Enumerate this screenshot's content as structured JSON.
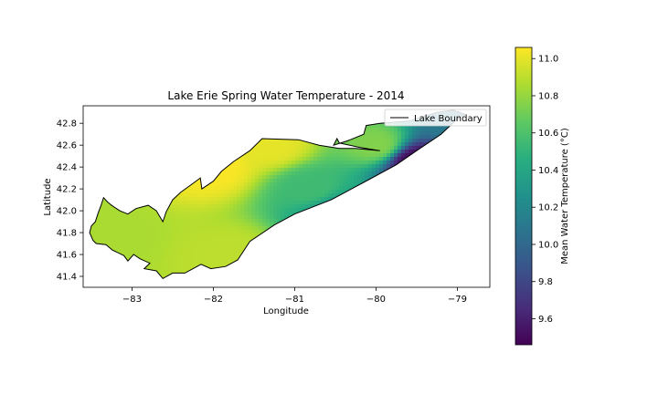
{
  "chart_data": {
    "type": "heatmap",
    "title": "Lake Erie Spring Water Temperature - 2014",
    "xlabel": "Longitude",
    "ylabel": "Latitude",
    "xlim": [
      -83.6,
      -78.6
    ],
    "ylim": [
      41.3,
      42.96
    ],
    "x_ticks": [
      {
        "value": -83,
        "label": "−83"
      },
      {
        "value": -82,
        "label": "−82"
      },
      {
        "value": -81,
        "label": "−81"
      },
      {
        "value": -80,
        "label": "−80"
      },
      {
        "value": -79,
        "label": "−79"
      }
    ],
    "y_ticks": [
      {
        "value": 41.4,
        "label": "41.4"
      },
      {
        "value": 41.6,
        "label": "41.6"
      },
      {
        "value": 41.8,
        "label": "41.8"
      },
      {
        "value": 42.0,
        "label": "42.0"
      },
      {
        "value": 42.2,
        "label": "42.2"
      },
      {
        "value": 42.4,
        "label": "42.4"
      },
      {
        "value": 42.6,
        "label": "42.6"
      },
      {
        "value": 42.8,
        "label": "42.8"
      }
    ],
    "grid": false,
    "legend": {
      "placement": "upper right",
      "entries": [
        "Lake Boundary"
      ]
    },
    "colorbar": {
      "label": "Mean Water Temperature (°C)",
      "colormap": "viridis",
      "range": [
        9.46,
        11.06
      ],
      "ticks": [
        {
          "value": 9.6,
          "label": "9.6"
        },
        {
          "value": 9.8,
          "label": "9.8"
        },
        {
          "value": 10.0,
          "label": "10.0"
        },
        {
          "value": 10.2,
          "label": "10.2"
        },
        {
          "value": 10.4,
          "label": "10.4"
        },
        {
          "value": 10.6,
          "label": "10.6"
        },
        {
          "value": 10.8,
          "label": "10.8"
        },
        {
          "value": 11.0,
          "label": "11.0"
        }
      ]
    },
    "temperature_field": {
      "description_of_gradient": "warmest (~11.0 °C) along the north-west shore, coolest (~9.5 °C) along the south-east shore near -79.5",
      "samples": [
        {
          "lon": -83.3,
          "lat": 41.8,
          "temp": 10.85
        },
        {
          "lon": -82.0,
          "lat": 42.4,
          "temp": 11.05
        },
        {
          "lon": -81.3,
          "lat": 42.6,
          "temp": 11.0
        },
        {
          "lon": -81.8,
          "lat": 41.6,
          "temp": 10.9
        },
        {
          "lon": -80.8,
          "lat": 42.2,
          "temp": 10.55
        },
        {
          "lon": -80.5,
          "lat": 42.0,
          "temp": 10.3
        },
        {
          "lon": -80.0,
          "lat": 42.6,
          "temp": 10.75
        },
        {
          "lon": -79.5,
          "lat": 42.45,
          "temp": 9.5
        },
        {
          "lon": -79.0,
          "lat": 42.8,
          "temp": 10.1
        }
      ]
    },
    "boundary": [
      [
        -83.48,
        41.73
      ],
      [
        -83.44,
        41.7
      ],
      [
        -83.32,
        41.69
      ],
      [
        -83.24,
        41.64
      ],
      [
        -83.1,
        41.59
      ],
      [
        -83.05,
        41.54
      ],
      [
        -82.98,
        41.6
      ],
      [
        -82.9,
        41.56
      ],
      [
        -82.78,
        41.52
      ],
      [
        -82.85,
        41.47
      ],
      [
        -82.7,
        41.45
      ],
      [
        -82.62,
        41.38
      ],
      [
        -82.5,
        41.43
      ],
      [
        -82.35,
        41.43
      ],
      [
        -82.15,
        41.51
      ],
      [
        -82.03,
        41.47
      ],
      [
        -81.85,
        41.49
      ],
      [
        -81.7,
        41.55
      ],
      [
        -81.55,
        41.72
      ],
      [
        -81.25,
        41.87
      ],
      [
        -81.0,
        41.97
      ],
      [
        -80.55,
        42.1
      ],
      [
        -80.1,
        42.28
      ],
      [
        -79.75,
        42.42
      ],
      [
        -79.5,
        42.55
      ],
      [
        -79.2,
        42.7
      ],
      [
        -79.0,
        42.84
      ],
      [
        -78.9,
        42.88
      ],
      [
        -79.05,
        42.92
      ],
      [
        -79.25,
        42.9
      ],
      [
        -79.6,
        42.82
      ],
      [
        -79.95,
        42.8
      ],
      [
        -80.12,
        42.78
      ],
      [
        -80.15,
        42.7
      ],
      [
        -80.35,
        42.64
      ],
      [
        -80.52,
        42.6
      ],
      [
        -80.48,
        42.66
      ],
      [
        -80.45,
        42.62
      ],
      [
        -80.2,
        42.58
      ],
      [
        -79.95,
        42.55
      ],
      [
        -80.25,
        42.57
      ],
      [
        -80.45,
        42.57
      ],
      [
        -80.7,
        42.6
      ],
      [
        -80.95,
        42.65
      ],
      [
        -81.4,
        42.66
      ],
      [
        -81.55,
        42.55
      ],
      [
        -81.75,
        42.45
      ],
      [
        -81.9,
        42.36
      ],
      [
        -82.0,
        42.27
      ],
      [
        -82.1,
        42.22
      ],
      [
        -82.14,
        42.2
      ],
      [
        -82.16,
        42.3
      ],
      [
        -82.25,
        42.25
      ],
      [
        -82.4,
        42.17
      ],
      [
        -82.5,
        42.1
      ],
      [
        -82.58,
        41.99
      ],
      [
        -82.62,
        41.9
      ],
      [
        -82.7,
        42.0
      ],
      [
        -82.8,
        42.05
      ],
      [
        -82.95,
        42.02
      ],
      [
        -83.05,
        41.97
      ],
      [
        -83.15,
        42.0
      ],
      [
        -83.25,
        42.05
      ],
      [
        -83.3,
        42.08
      ],
      [
        -83.35,
        42.12
      ],
      [
        -83.38,
        42.05
      ],
      [
        -83.42,
        41.97
      ],
      [
        -83.45,
        41.9
      ],
      [
        -83.5,
        41.86
      ],
      [
        -83.52,
        41.8
      ],
      [
        -83.48,
        41.73
      ]
    ]
  }
}
